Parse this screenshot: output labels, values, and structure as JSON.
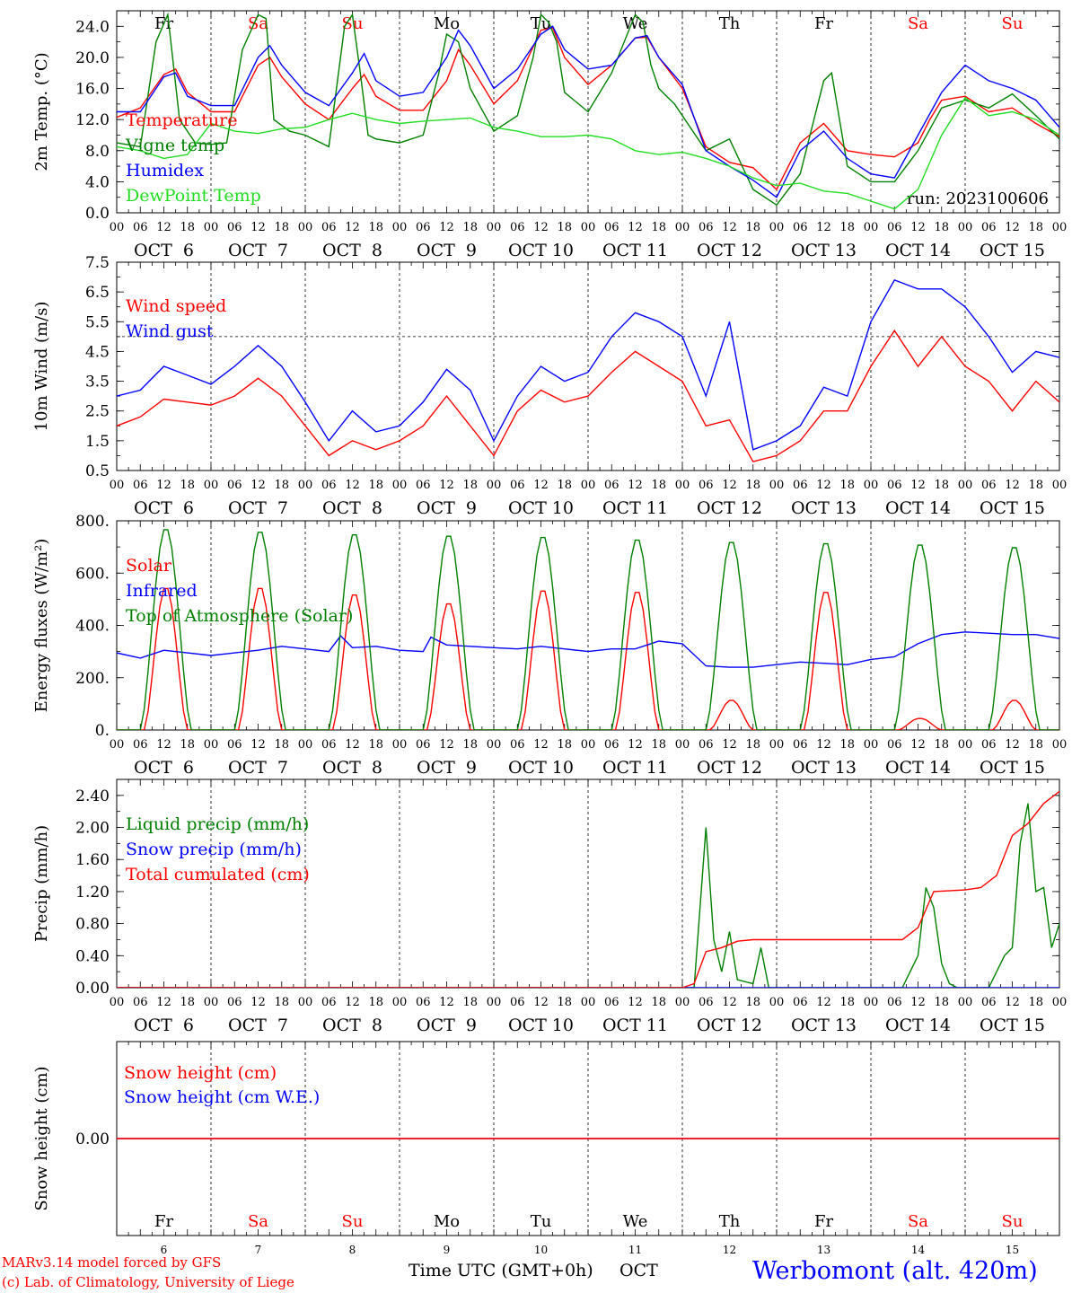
{
  "station": "Werbomont (alt. 420m)",
  "credit_line1": "MARv3.14 model forced by GFS",
  "credit_line2": "(c) Lab. of Climatology, University of Liege",
  "x_axis_title": "Time UTC (GMT+0h)",
  "x_axis_month": "OCT",
  "run_label": "run: 2023100606",
  "hour_ticks": [
    "00",
    "06",
    "12",
    "18"
  ],
  "days": [
    {
      "weekday": "Fr",
      "date": "OCT  6",
      "num": "6",
      "weekend": false
    },
    {
      "weekday": "Sa",
      "date": "OCT  7",
      "num": "7",
      "weekend": true
    },
    {
      "weekday": "Su",
      "date": "OCT  8",
      "num": "8",
      "weekend": true
    },
    {
      "weekday": "Mo",
      "date": "OCT  9",
      "num": "9",
      "weekend": false
    },
    {
      "weekday": "Tu",
      "date": "OCT 10",
      "num": "10",
      "weekend": false
    },
    {
      "weekday": "We",
      "date": "OCT 11",
      "num": "11",
      "weekend": false
    },
    {
      "weekday": "Th",
      "date": "OCT 12",
      "num": "12",
      "weekend": false
    },
    {
      "weekday": "Fr",
      "date": "OCT 13",
      "num": "13",
      "weekend": false
    },
    {
      "weekday": "Sa",
      "date": "OCT 14",
      "num": "14",
      "weekend": true
    },
    {
      "weekday": "Su",
      "date": "OCT 15",
      "num": "15",
      "weekend": true
    }
  ],
  "colors": {
    "red": "#ff0000",
    "blue": "#0000ff",
    "green": "#008000",
    "light_green": "#22dd22",
    "weekend": "#ff0000",
    "purple": "#800080"
  },
  "chart_data": [
    {
      "type": "line",
      "ylabel": "2m Temp. (°C)",
      "ylim": [
        0,
        26
      ],
      "yticks": [
        "0.0",
        "4.0",
        "8.0",
        "12.0",
        "16.0",
        "20.0",
        "24.0"
      ],
      "ytick_values": [
        0,
        4,
        8,
        12,
        16,
        20,
        24
      ],
      "x_unit": "hours since Oct 6 00 UTC",
      "xlim": [
        0,
        240
      ],
      "series": [
        {
          "name": "Temperature",
          "color": "red",
          "x": [
            0,
            6,
            12,
            15,
            18,
            24,
            30,
            36,
            39,
            42,
            48,
            54,
            60,
            63,
            66,
            72,
            78,
            84,
            87,
            90,
            96,
            102,
            108,
            111,
            114,
            120,
            126,
            132,
            135,
            138,
            144,
            150,
            156,
            162,
            168,
            174,
            180,
            186,
            192,
            198,
            204,
            207,
            210,
            216,
            222,
            228,
            234,
            240
          ],
          "values": [
            12.3,
            13.5,
            17.8,
            18.5,
            15.5,
            13.0,
            13.0,
            19.0,
            20.0,
            17.5,
            14.0,
            12.0,
            16.0,
            17.8,
            15.0,
            13.2,
            13.2,
            17.0,
            21.0,
            19.0,
            14.0,
            17.0,
            23.5,
            23.8,
            20.0,
            16.5,
            19.0,
            22.5,
            22.6,
            20.0,
            16.0,
            8.5,
            6.5,
            5.8,
            3.0,
            9.0,
            11.5,
            8.0,
            7.5,
            7.2,
            9.0,
            12.0,
            14.5,
            15.0,
            13.0,
            13.5,
            11.5,
            9.8
          ]
        },
        {
          "name": "Vigne temp",
          "color": "green",
          "x": [
            0,
            6,
            10,
            13,
            16,
            20,
            24,
            28,
            32,
            36,
            38,
            40,
            44,
            48,
            54,
            58,
            60,
            62,
            64,
            66,
            72,
            78,
            82,
            84,
            87,
            90,
            96,
            102,
            106,
            108,
            110,
            112,
            114,
            120,
            126,
            132,
            134,
            136,
            138,
            140,
            142,
            144,
            150,
            156,
            162,
            168,
            174,
            180,
            182,
            186,
            192,
            198,
            204,
            210,
            216,
            222,
            228,
            234,
            240
          ],
          "values": [
            9.0,
            8.5,
            22.0,
            25.5,
            12.0,
            9.0,
            8.8,
            9.0,
            21.0,
            25.5,
            25.0,
            12.0,
            10.5,
            10.0,
            8.5,
            24.0,
            25.5,
            18.0,
            10.0,
            9.5,
            9.0,
            10.0,
            18.0,
            23.0,
            22.0,
            16.0,
            10.5,
            12.5,
            20.0,
            25.5,
            24.5,
            22.0,
            15.5,
            13.0,
            18.0,
            25.5,
            24.5,
            19.0,
            16.0,
            15.0,
            14.0,
            12.5,
            8.0,
            9.5,
            3.0,
            1.0,
            5.0,
            17.0,
            18.0,
            6.0,
            4.0,
            4.0,
            8.0,
            13.5,
            14.5,
            13.5,
            15.3,
            12.5,
            9.5
          ]
        },
        {
          "name": "Humidex",
          "color": "blue",
          "x": [
            0,
            6,
            12,
            15,
            18,
            24,
            30,
            36,
            39,
            42,
            48,
            54,
            60,
            63,
            66,
            72,
            78,
            84,
            87,
            90,
            96,
            102,
            108,
            111,
            114,
            120,
            126,
            132,
            135,
            138,
            144,
            150,
            156,
            162,
            168,
            174,
            180,
            186,
            192,
            198,
            204,
            210,
            216,
            222,
            228,
            234,
            240
          ],
          "values": [
            13.0,
            13.0,
            17.5,
            18.0,
            15.0,
            13.8,
            13.8,
            20.0,
            21.5,
            19.0,
            15.5,
            13.8,
            18.0,
            20.5,
            17.0,
            15.0,
            15.5,
            20.0,
            23.5,
            21.5,
            16.0,
            18.5,
            23.0,
            24.0,
            21.0,
            18.5,
            19.0,
            22.5,
            22.8,
            20.0,
            16.5,
            8.0,
            6.0,
            4.2,
            2.0,
            8.0,
            10.5,
            7.0,
            5.0,
            4.5,
            10.0,
            15.5,
            19.0,
            17.0,
            16.0,
            14.5,
            11.0
          ]
        },
        {
          "name": "DewPoint Temp",
          "color": "light_green",
          "x": [
            0,
            6,
            12,
            18,
            24,
            30,
            36,
            42,
            48,
            54,
            60,
            66,
            72,
            78,
            84,
            90,
            96,
            102,
            108,
            114,
            120,
            126,
            132,
            138,
            144,
            150,
            156,
            162,
            168,
            174,
            180,
            186,
            192,
            198,
            204,
            210,
            216,
            222,
            228,
            234,
            240
          ],
          "values": [
            8.5,
            8.0,
            7.0,
            7.5,
            11.5,
            10.5,
            10.2,
            10.8,
            11.0,
            12.0,
            12.8,
            12.0,
            11.5,
            11.8,
            12.0,
            12.2,
            11.0,
            10.5,
            9.8,
            9.8,
            10.0,
            9.5,
            8.0,
            7.5,
            7.8,
            7.0,
            6.0,
            4.5,
            3.5,
            3.8,
            2.8,
            2.5,
            1.5,
            0.5,
            3.0,
            10.0,
            14.8,
            12.5,
            13.0,
            12.0,
            10.0
          ]
        }
      ]
    },
    {
      "type": "line",
      "ylabel": "10m Wind (m/s)",
      "ylim": [
        0.5,
        7.5
      ],
      "yticks": [
        "0.5",
        "1.5",
        "2.5",
        "3.5",
        "4.5",
        "5.5",
        "6.5",
        "7.5"
      ],
      "ytick_values": [
        0.5,
        1.5,
        2.5,
        3.5,
        4.5,
        5.5,
        6.5,
        7.5
      ],
      "reference_line": 5.0,
      "x_unit": "hours since Oct 6 00 UTC",
      "xlim": [
        0,
        240
      ],
      "series": [
        {
          "name": "Wind speed",
          "color": "red",
          "x": [
            0,
            6,
            12,
            18,
            24,
            30,
            36,
            42,
            48,
            54,
            60,
            66,
            72,
            78,
            84,
            90,
            96,
            102,
            108,
            114,
            120,
            126,
            132,
            138,
            144,
            150,
            156,
            162,
            168,
            174,
            180,
            186,
            192,
            198,
            204,
            210,
            216,
            222,
            228,
            234,
            240
          ],
          "values": [
            2.0,
            2.3,
            2.9,
            2.8,
            2.7,
            3.0,
            3.6,
            3.0,
            2.0,
            1.0,
            1.5,
            1.2,
            1.5,
            2.0,
            3.0,
            2.0,
            1.0,
            2.5,
            3.2,
            2.8,
            3.0,
            3.8,
            4.5,
            4.0,
            3.5,
            2.0,
            2.2,
            0.8,
            1.0,
            1.5,
            2.5,
            2.5,
            4.0,
            5.2,
            4.0,
            5.0,
            4.0,
            3.5,
            2.5,
            3.5,
            2.8
          ]
        },
        {
          "name": "Wind gust",
          "color": "blue",
          "x": [
            0,
            6,
            12,
            18,
            24,
            30,
            36,
            42,
            48,
            54,
            60,
            66,
            72,
            78,
            84,
            90,
            96,
            102,
            108,
            114,
            120,
            126,
            132,
            138,
            144,
            150,
            156,
            162,
            168,
            174,
            180,
            186,
            192,
            198,
            204,
            210,
            216,
            222,
            228,
            234,
            240
          ],
          "values": [
            3.0,
            3.2,
            4.0,
            3.7,
            3.4,
            4.0,
            4.7,
            4.0,
            2.8,
            1.5,
            2.5,
            1.8,
            2.0,
            2.8,
            3.9,
            3.2,
            1.5,
            3.0,
            4.0,
            3.5,
            3.8,
            5.0,
            5.8,
            5.5,
            5.0,
            3.0,
            5.5,
            1.2,
            1.5,
            2.0,
            3.3,
            3.0,
            5.5,
            6.9,
            6.6,
            6.6,
            6.0,
            5.0,
            3.8,
            4.5,
            4.3
          ]
        }
      ]
    },
    {
      "type": "line",
      "ylabel": "Energy fluxes (W/m²)",
      "ylim": [
        0,
        800
      ],
      "yticks": [
        "0.",
        "200.",
        "400.",
        "600.",
        "800."
      ],
      "ytick_values": [
        0,
        200,
        400,
        600,
        800
      ],
      "x_unit": "hours since Oct 6 00 UTC",
      "xlim": [
        0,
        240
      ],
      "peaks": {
        "solar": [
          550,
          550,
          525,
          490,
          540,
          535,
          115,
          535,
          45,
          115
        ],
        "toa": [
          775,
          765,
          755,
          750,
          745,
          735,
          725,
          720,
          715,
          705
        ]
      },
      "series": [
        {
          "name": "Solar",
          "color": "red",
          "x": [],
          "values": []
        },
        {
          "name": "Infrared",
          "color": "blue",
          "x": [
            0,
            6,
            12,
            18,
            24,
            30,
            36,
            42,
            48,
            54,
            57,
            60,
            66,
            72,
            78,
            80,
            84,
            90,
            96,
            102,
            108,
            114,
            120,
            126,
            132,
            138,
            144,
            150,
            156,
            162,
            168,
            174,
            180,
            186,
            192,
            198,
            204,
            210,
            216,
            222,
            228,
            234,
            240
          ],
          "values": [
            295,
            275,
            305,
            295,
            285,
            295,
            305,
            320,
            310,
            300,
            360,
            315,
            320,
            305,
            300,
            355,
            325,
            320,
            315,
            310,
            320,
            310,
            300,
            310,
            310,
            340,
            330,
            245,
            240,
            240,
            250,
            260,
            255,
            250,
            270,
            280,
            330,
            365,
            375,
            370,
            365,
            365,
            350
          ]
        },
        {
          "name": "Top of Atmosphere (Solar)",
          "color": "green",
          "x": [],
          "values": []
        }
      ]
    },
    {
      "type": "line",
      "ylabel": "Precip (mm/h)",
      "ylim": [
        0,
        2.6
      ],
      "yticks": [
        "0.00",
        "0.40",
        "0.80",
        "1.20",
        "1.60",
        "2.00",
        "2.40"
      ],
      "ytick_values": [
        0,
        0.4,
        0.8,
        1.2,
        1.6,
        2.0,
        2.4
      ],
      "x_unit": "hours since Oct 6 00 UTC",
      "xlim": [
        0,
        240
      ],
      "series": [
        {
          "name": "Liquid precip (mm/h)",
          "color": "green",
          "x": [
            0,
            144,
            147,
            150,
            152,
            154,
            156,
            158,
            162,
            164,
            166,
            168,
            192,
            200,
            204,
            206,
            208,
            210,
            212,
            214,
            222,
            226,
            228,
            230,
            232,
            234,
            236,
            238,
            240
          ],
          "values": [
            0,
            0,
            0,
            2.0,
            0.6,
            0.2,
            0.7,
            0.1,
            0.05,
            0.5,
            0,
            0,
            0,
            0,
            0.4,
            1.25,
            1.0,
            0.3,
            0.05,
            0,
            0,
            0.4,
            0.5,
            1.8,
            2.3,
            1.2,
            1.25,
            0.5,
            0.8
          ]
        },
        {
          "name": "Snow precip (mm/h)",
          "color": "blue",
          "x": [
            0,
            240
          ],
          "values": [
            0,
            0
          ]
        },
        {
          "name": "Total cumulated (cm)",
          "color": "red",
          "x": [
            0,
            144,
            147,
            150,
            154,
            158,
            162,
            168,
            186,
            200,
            204,
            208,
            216,
            220,
            224,
            228,
            232,
            236,
            240
          ],
          "values": [
            0,
            0,
            0.05,
            0.45,
            0.5,
            0.58,
            0.6,
            0.6,
            0.6,
            0.6,
            0.75,
            1.2,
            1.22,
            1.25,
            1.4,
            1.9,
            2.05,
            2.3,
            2.45
          ]
        }
      ]
    },
    {
      "type": "line",
      "ylabel": "Snow height (cm)",
      "ylim": [
        -1,
        1
      ],
      "yticks": [
        "0.00"
      ],
      "ytick_values": [
        0
      ],
      "x_unit": "hours since Oct 6 00 UTC",
      "xlim": [
        0,
        240
      ],
      "series": [
        {
          "name": "Snow height (cm)",
          "color": "red",
          "x": [
            0,
            240
          ],
          "values": [
            0,
            0
          ]
        },
        {
          "name": "Snow height (cm W.E.)",
          "color": "blue",
          "x": [
            0,
            240
          ],
          "values": [
            0,
            0
          ]
        }
      ]
    }
  ]
}
